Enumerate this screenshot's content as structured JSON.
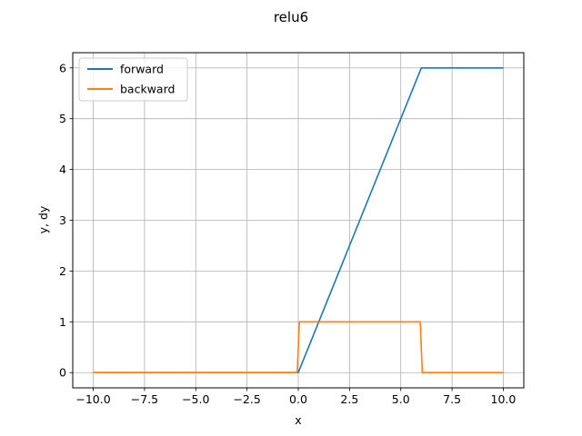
{
  "chart_data": {
    "type": "line",
    "title": "relu6",
    "xlabel": "x",
    "ylabel": "y, dy",
    "xlim": [
      -11.0,
      11.0
    ],
    "ylim": [
      -0.3,
      6.3
    ],
    "xticks": [
      -10.0,
      -7.5,
      -5.0,
      -2.5,
      0.0,
      2.5,
      5.0,
      7.5,
      10.0
    ],
    "xtick_labels": [
      "−10.0",
      "−7.5",
      "−5.0",
      "−2.5",
      "0.0",
      "2.5",
      "5.0",
      "7.5",
      "10.0"
    ],
    "yticks": [
      0,
      1,
      2,
      3,
      4,
      5,
      6
    ],
    "ytick_labels": [
      "0",
      "1",
      "2",
      "3",
      "4",
      "5",
      "6"
    ],
    "grid": true,
    "legend_position": "top-left",
    "series": [
      {
        "name": "forward",
        "color": "#1f77b4",
        "x": [
          -10.0,
          0.0,
          6.0,
          10.0
        ],
        "y": [
          0,
          0,
          6,
          6
        ]
      },
      {
        "name": "backward",
        "color": "#ff7f0e",
        "x": [
          -10.0,
          -0.05,
          0.05,
          5.95,
          6.05,
          10.0
        ],
        "y": [
          0,
          0,
          1,
          1,
          0,
          0
        ]
      }
    ]
  }
}
